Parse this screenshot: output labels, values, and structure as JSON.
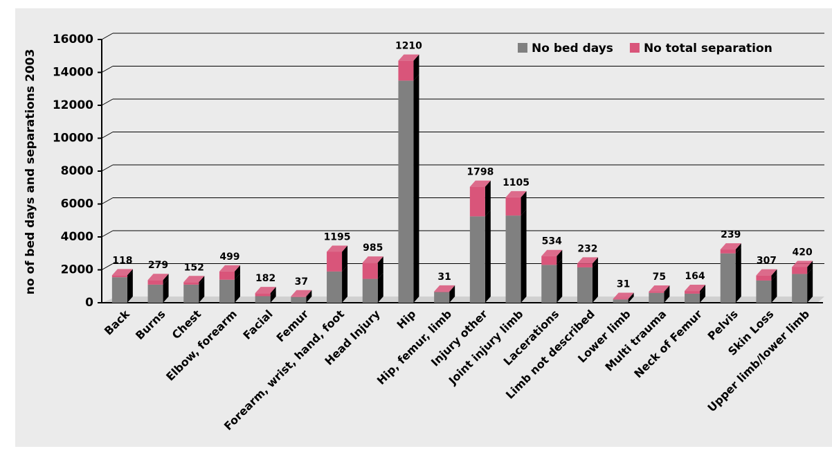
{
  "chart_data": {
    "type": "bar",
    "stacked": true,
    "y_label": "no of bed days and separations 2003",
    "categories": [
      "Back",
      "Burns",
      "Chest",
      "Elbow, forearm",
      "Facial",
      "Femur",
      "Forearm, wrist, hand, foot",
      "Head Injury",
      "Hip",
      "Hip, femur, limb",
      "Injury other",
      "Joint injury limb",
      "Lacerations",
      "Limb not described",
      "Lower limb",
      "Multi trauma",
      "Neck of Femur",
      "Pelvis",
      "Skin Loss",
      "Upper limb/lower limb"
    ],
    "series": [
      {
        "name": "No bed days",
        "color": "#808080",
        "values": [
          1550,
          1100,
          1100,
          1400,
          400,
          350,
          1900,
          1450,
          13500,
          650,
          5250,
          5300,
          2300,
          2150,
          200,
          600,
          550,
          3000,
          1350,
          1750
        ]
      },
      {
        "name": "No total separation",
        "color": "#d9557a",
        "values": [
          118,
          279,
          152,
          499,
          182,
          37,
          1195,
          985,
          1210,
          31,
          1798,
          1105,
          534,
          232,
          31,
          75,
          164,
          239,
          307,
          420
        ]
      }
    ],
    "ylim": [
      0,
      16000
    ],
    "yticks": [
      0,
      2000,
      4000,
      6000,
      8000,
      10000,
      12000,
      14000,
      16000
    ],
    "grid": true,
    "legend": "top-right"
  }
}
